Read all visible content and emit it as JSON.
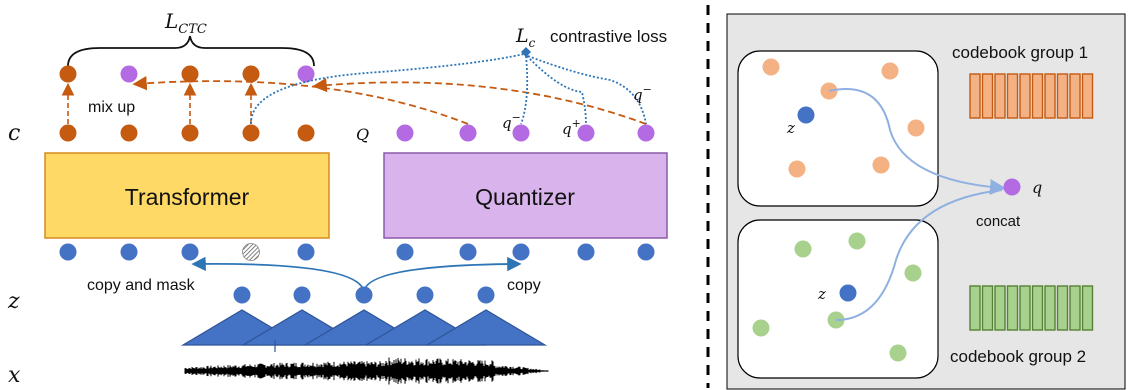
{
  "colors": {
    "orange": "#c55a11",
    "purple": "#b36ae2",
    "blue": "#4472c4",
    "transformer_fill": "#ffd966",
    "transformer_stroke": "#d68a1e",
    "quantizer_fill": "#d9b3ec",
    "quantizer_stroke": "#8b5aa8",
    "panel_bg": "#e6e6e6",
    "light_orange": "#f4b183",
    "light_green": "#a9d18e",
    "codebook_orange_fill": "#f4b183",
    "codebook_orange_stroke": "#c55a11",
    "codebook_green_fill": "#a9d18e",
    "codebook_green_stroke": "#548235"
  },
  "left": {
    "row_labels": {
      "c": "c",
      "q": "Q",
      "z": "z",
      "x": "x"
    },
    "loss_ctc": {
      "base": "L",
      "sub": "CTC"
    },
    "loss_c": {
      "base": "L",
      "sub": "c"
    },
    "contrastive_label": "contrastive loss",
    "mix_up": "mix up",
    "copy_and_mask": "copy and mask",
    "copy": "copy",
    "transformer": "Transformer",
    "quantizer": "Quantizer",
    "q_minus_1": "q",
    "q_plus": "q",
    "q_minus_2": "q",
    "q_minus_sup": "−",
    "q_plus_sup": "+"
  },
  "right": {
    "codebook_group_1": "codebook group 1",
    "codebook_group_2": "codebook group 2",
    "concat": "concat",
    "q": "q",
    "z_top": "z",
    "z_bottom": "z"
  }
}
